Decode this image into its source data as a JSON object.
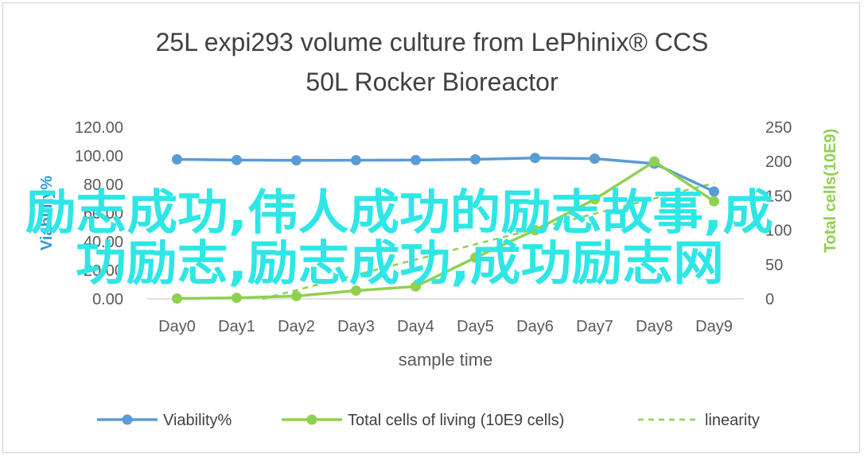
{
  "chart_data": {
    "type": "line",
    "title_line1": "25L  expi293 volume culture  from LePhinix® CCS",
    "title_line2": "50L Rocker Bioreactor",
    "xlabel": "sample  time",
    "ylabel_left": "Viability%",
    "ylabel_right": "Total cells(10E9)",
    "categories": [
      "Day0",
      "Day1",
      "Day2",
      "Day3",
      "Day4",
      "Day5",
      "Day6",
      "Day7",
      "Day8",
      "Day9"
    ],
    "ylim_left": [
      0,
      120
    ],
    "yticks_left": [
      "120.00",
      "100.00",
      "80.00",
      "60.00",
      "40.00",
      "20.00",
      "0.00"
    ],
    "ylim_right": [
      0,
      250
    ],
    "yticks_right": [
      "250",
      "200",
      "150",
      "100",
      "50",
      "0"
    ],
    "series": [
      {
        "name": "Viability%",
        "axis": "left",
        "color": "#5b9bd5",
        "values": [
          97.5,
          97.0,
          96.8,
          96.9,
          97.0,
          97.5,
          98.5,
          98.0,
          94.5,
          75.0
        ]
      },
      {
        "name": "Total cells of living (10E9 cells)",
        "axis": "right",
        "color": "#8fd14f",
        "values": [
          0.5,
          1.5,
          4,
          12,
          18,
          60,
          100,
          145,
          200,
          142
        ]
      }
    ],
    "trendline": {
      "name": "linearity",
      "color": "#8fd14f",
      "style": "dashed"
    },
    "legend_position": "bottom",
    "grid": false
  },
  "watermark": {
    "line1": "励志成功,伟人成功的励志故事,成",
    "line2": "功励志,励志成功,成功励志网"
  }
}
